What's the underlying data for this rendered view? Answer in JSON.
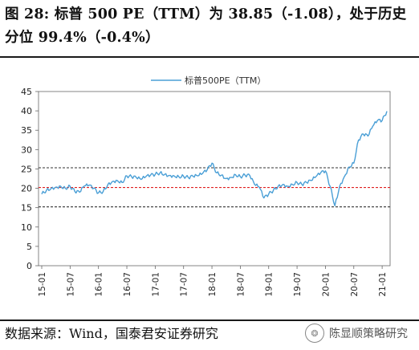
{
  "header": {
    "title": "图 28:  标普 500 PE（TTM）为 38.85（-1.08），处于历史分位 99.4%（-0.4%）"
  },
  "footer": {
    "source": "数据来源：Wind，国泰君安证券研究",
    "watermark": "陈显顺策略研究"
  },
  "colors": {
    "series": "#4a9fd6",
    "median": "#e02020",
    "band": "#333333"
  },
  "chart_data": {
    "type": "line",
    "legend": "top-center",
    "series": [
      {
        "name": "标普500PE（TTM）",
        "x": [
          "2015-01",
          "2015-02",
          "2015-03",
          "2015-04",
          "2015-05",
          "2015-06",
          "2015-07",
          "2015-08",
          "2015-09",
          "2015-10",
          "2015-11",
          "2015-12",
          "2016-01",
          "2016-02",
          "2016-03",
          "2016-04",
          "2016-05",
          "2016-06",
          "2016-07",
          "2016-08",
          "2016-09",
          "2016-10",
          "2016-11",
          "2016-12",
          "2017-01",
          "2017-02",
          "2017-03",
          "2017-04",
          "2017-05",
          "2017-06",
          "2017-07",
          "2017-08",
          "2017-09",
          "2017-10",
          "2017-11",
          "2017-12",
          "2018-01",
          "2018-02",
          "2018-03",
          "2018-04",
          "2018-05",
          "2018-06",
          "2018-07",
          "2018-08",
          "2018-09",
          "2018-10",
          "2018-11",
          "2018-12",
          "2019-01",
          "2019-02",
          "2019-03",
          "2019-04",
          "2019-05",
          "2019-06",
          "2019-07",
          "2019-08",
          "2019-09",
          "2019-10",
          "2019-11",
          "2019-12",
          "2020-01",
          "2020-02",
          "2020-03",
          "2020-04",
          "2020-05",
          "2020-06",
          "2020-07",
          "2020-08",
          "2020-09",
          "2020-10",
          "2020-11",
          "2020-12",
          "2021-01",
          "2021-02"
        ],
        "values": [
          18.5,
          19.5,
          20.0,
          20.3,
          20.5,
          20.0,
          20.5,
          19.2,
          19.0,
          20.6,
          20.8,
          20.0,
          18.8,
          19.2,
          21.0,
          21.8,
          22.0,
          21.5,
          23.2,
          23.0,
          22.8,
          22.3,
          23.0,
          23.4,
          23.6,
          24.0,
          23.6,
          23.3,
          23.2,
          23.0,
          23.1,
          22.8,
          23.1,
          23.2,
          23.8,
          24.8,
          26.5,
          24.0,
          23.4,
          22.5,
          22.8,
          23.5,
          23.0,
          23.4,
          23.3,
          21.0,
          20.3,
          17.5,
          18.5,
          19.5,
          20.5,
          21.0,
          20.5,
          21.0,
          21.5,
          21.0,
          21.5,
          22.0,
          23.0,
          24.0,
          24.5,
          20.5,
          15.5,
          20.5,
          23.0,
          25.5,
          26.5,
          32.5,
          34.0,
          33.5,
          36.0,
          37.5,
          37.5,
          39.9
        ]
      }
    ],
    "reference_lines": [
      {
        "label": "median",
        "value": 20.2,
        "color": "#e02020"
      },
      {
        "label": "upper",
        "value": 25.3,
        "color": "#333333"
      },
      {
        "label": "lower",
        "value": 15.2,
        "color": "#333333"
      }
    ],
    "ylim": [
      0,
      45
    ],
    "yticks": [
      0,
      5,
      10,
      15,
      20,
      25,
      30,
      35,
      40,
      45
    ],
    "xticks": [
      "15-01",
      "15-07",
      "16-01",
      "16-07",
      "17-01",
      "17-07",
      "18-01",
      "18-07",
      "19-01",
      "19-07",
      "20-01",
      "20-07",
      "21-01"
    ],
    "grid": false
  }
}
